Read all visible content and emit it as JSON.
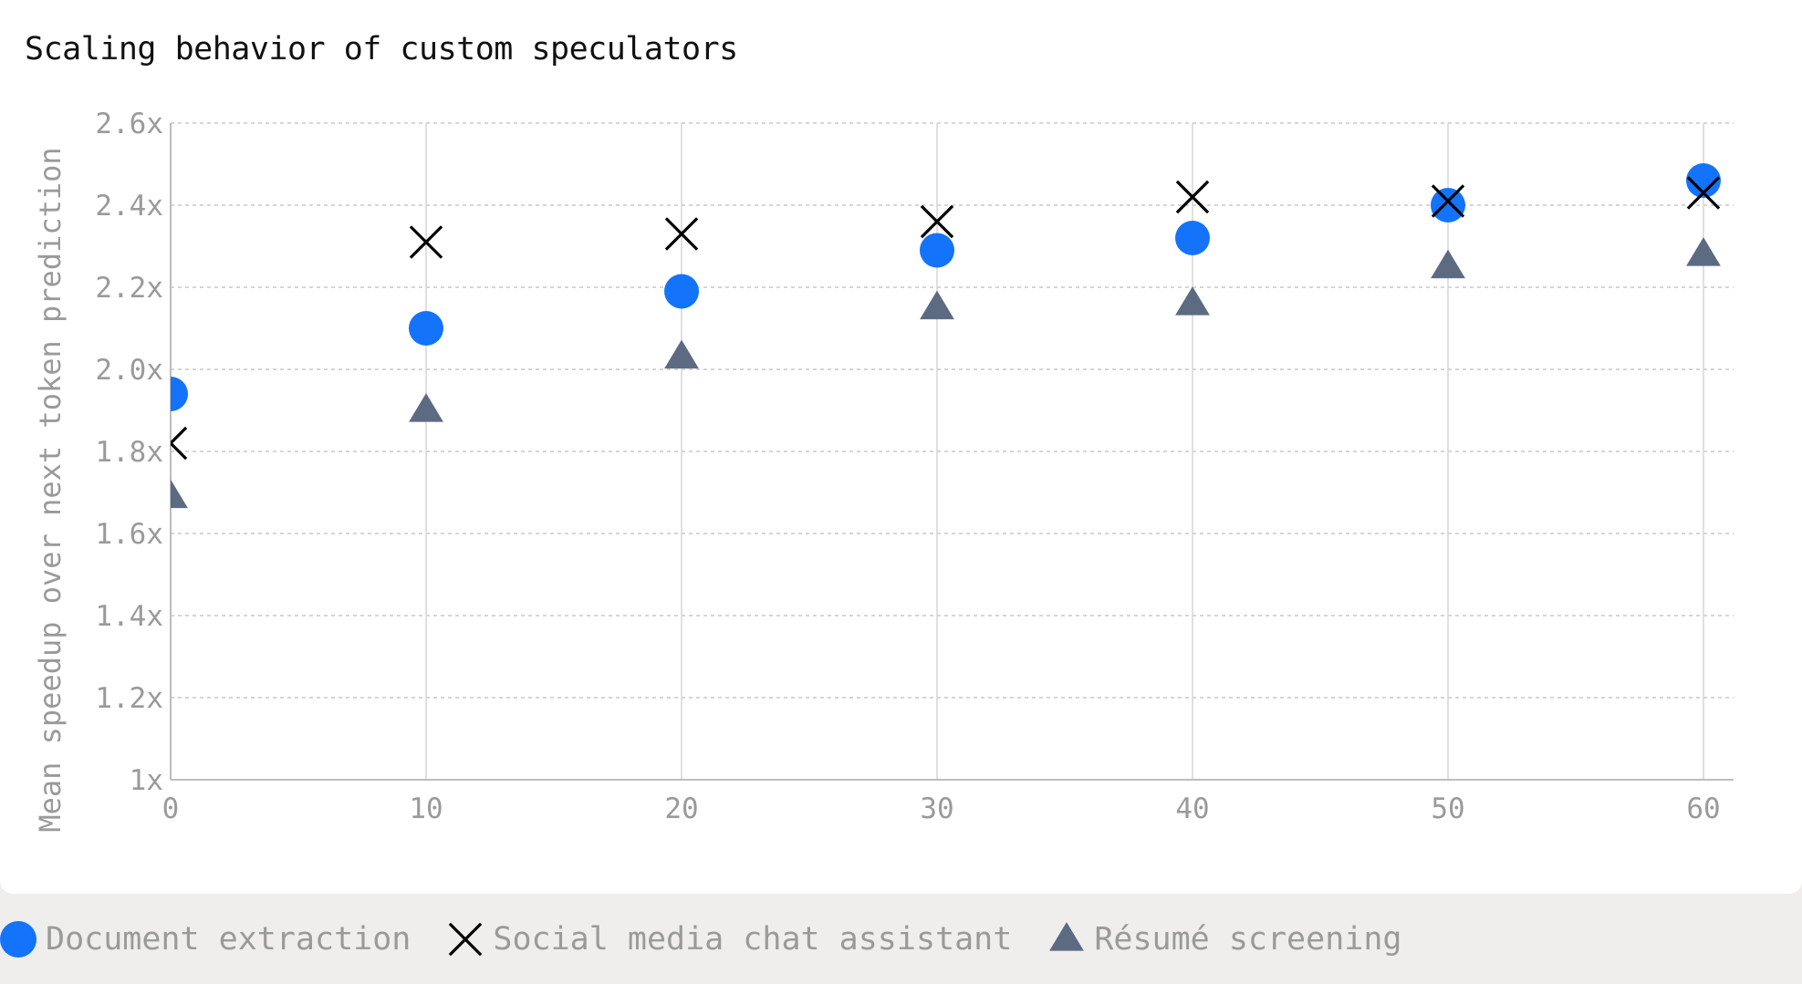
{
  "chart_data": {
    "type": "scatter",
    "title": "Scaling behavior of custom speculators",
    "xlabel": "",
    "ylabel": "Mean speedup over next token prediction",
    "xlim": [
      0,
      60
    ],
    "ylim": [
      1.0,
      2.6
    ],
    "x_ticks": [
      0,
      10,
      20,
      30,
      40,
      50,
      60
    ],
    "y_ticks": [
      1.0,
      1.2,
      1.4,
      1.6,
      1.8,
      2.0,
      2.2,
      2.4,
      2.6
    ],
    "y_tick_labels": [
      "1x",
      "1.2x",
      "1.4x",
      "1.6x",
      "1.8x",
      "2.0x",
      "2.2x",
      "2.4x",
      "2.6x"
    ],
    "grid": true,
    "legend_position": "bottom",
    "series": [
      {
        "name": "Document extraction",
        "marker": "circle",
        "color": "#1373fb",
        "x": [
          0,
          10,
          20,
          30,
          40,
          50,
          60
        ],
        "y": [
          1.94,
          2.1,
          2.19,
          2.29,
          2.32,
          2.4,
          2.46
        ]
      },
      {
        "name": "Social media chat assistant",
        "marker": "x",
        "color": "#000000",
        "x": [
          0,
          10,
          20,
          30,
          40,
          50,
          60
        ],
        "y": [
          1.82,
          2.31,
          2.33,
          2.36,
          2.42,
          2.41,
          2.43
        ]
      },
      {
        "name": "Résumé screening",
        "marker": "triangle",
        "color": "#5c6b82",
        "x": [
          0,
          10,
          20,
          30,
          40,
          50,
          60
        ],
        "y": [
          1.69,
          1.9,
          2.03,
          2.15,
          2.16,
          2.25,
          2.28
        ]
      }
    ]
  }
}
